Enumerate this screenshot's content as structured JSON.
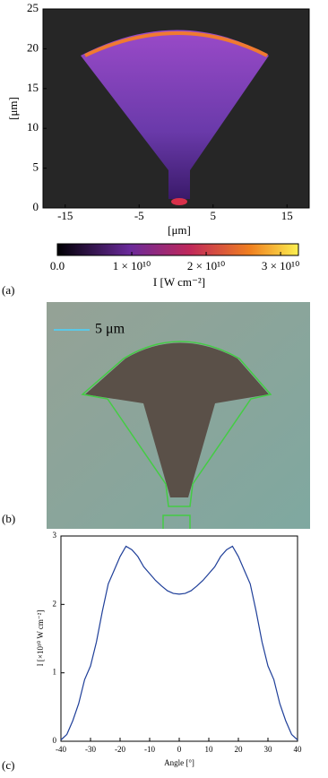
{
  "chart_data": [
    {
      "type": "heatmap",
      "panel_label": "(a)",
      "xlabel": "[μm]",
      "ylabel": "[μm]",
      "xlim": [
        -18,
        18
      ],
      "xticks": [
        -15,
        -5,
        5,
        15
      ],
      "ylim": [
        0,
        25
      ],
      "yticks": [
        0,
        5,
        10,
        15,
        20,
        25
      ],
      "colorbar_label": "I [W cm⁻²]",
      "clim": [
        0,
        32400000000
      ],
      "cticks": [
        {
          "value": 0,
          "label": "0.0"
        },
        {
          "value": 10000000000,
          "label": "1 × 10¹⁰"
        },
        {
          "value": 20000000000,
          "label": "2 × 10¹⁰"
        },
        {
          "value": 30000000000,
          "label": "3 × 10¹⁰"
        }
      ]
    },
    {
      "type": "image",
      "panel_label": "(b)",
      "legend": "5 μm",
      "color": "#5bc8e6",
      "outline_color": "#44cc44"
    },
    {
      "type": "line",
      "panel_label": "(c)",
      "xlabel": "Angle [°]",
      "ylabel": "I [×10¹⁰ W cm⁻²]",
      "color": "#1f3f99",
      "xlim": [
        -40,
        40
      ],
      "xticks": [
        -40,
        -30,
        -20,
        -10,
        0,
        10,
        20,
        30,
        40
      ],
      "ylim": [
        0,
        3
      ],
      "yticks": [
        0,
        1,
        2,
        3
      ],
      "x": [
        -40,
        -38,
        -36,
        -34,
        -32,
        -30,
        -28,
        -26,
        -24,
        -22,
        -20,
        -18,
        -16,
        -14,
        -12,
        -10,
        -8,
        -6,
        -4,
        -2,
        0,
        2,
        4,
        6,
        8,
        10,
        12,
        14,
        16,
        18,
        20,
        22,
        24,
        26,
        28,
        30,
        32,
        34,
        36,
        38,
        40
      ],
      "values": [
        0.02,
        0.1,
        0.3,
        0.55,
        0.9,
        1.1,
        1.45,
        1.9,
        2.3,
        2.5,
        2.7,
        2.85,
        2.8,
        2.7,
        2.55,
        2.45,
        2.35,
        2.27,
        2.2,
        2.16,
        2.15,
        2.16,
        2.2,
        2.27,
        2.35,
        2.45,
        2.55,
        2.7,
        2.8,
        2.85,
        2.7,
        2.5,
        2.3,
        1.9,
        1.45,
        1.1,
        0.9,
        0.55,
        0.3,
        0.1,
        0.02
      ]
    }
  ]
}
